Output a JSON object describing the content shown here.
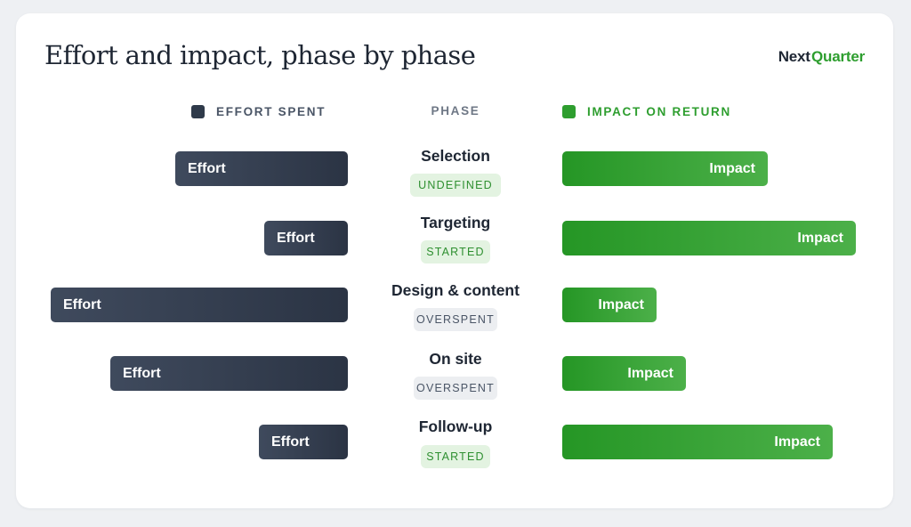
{
  "title": "Effort and impact, phase by phase",
  "brand": {
    "first": "Next",
    "second": "Quarter"
  },
  "colors": {
    "effort": "#2f3a4a",
    "impact": "#2e9e2f",
    "badge_green_bg": "#e3f3e1",
    "badge_grey_bg": "#eceef1"
  },
  "legend": {
    "effort": "EFFORT SPENT",
    "phase": "PHASE",
    "impact": "IMPACT ON RETURN"
  },
  "chart_data": {
    "type": "bar",
    "layout": "diverging-horizontal",
    "categories": [
      "Selection",
      "Targeting",
      "Design & content",
      "On site",
      "Follow-up"
    ],
    "status": [
      "UNDEFINED",
      "STARTED",
      "OVERSPENT",
      "OVERSPENT",
      "STARTED"
    ],
    "series": [
      {
        "name": "EFFORT SPENT",
        "bar_label": "Effort",
        "values": [
          58,
          28,
          100,
          80,
          30
        ]
      },
      {
        "name": "IMPACT ON RETURN",
        "bar_label": "Impact",
        "values": [
          70,
          100,
          32,
          42,
          92
        ]
      }
    ],
    "value_unit": "relative",
    "grid": false,
    "legend_position": "top"
  }
}
